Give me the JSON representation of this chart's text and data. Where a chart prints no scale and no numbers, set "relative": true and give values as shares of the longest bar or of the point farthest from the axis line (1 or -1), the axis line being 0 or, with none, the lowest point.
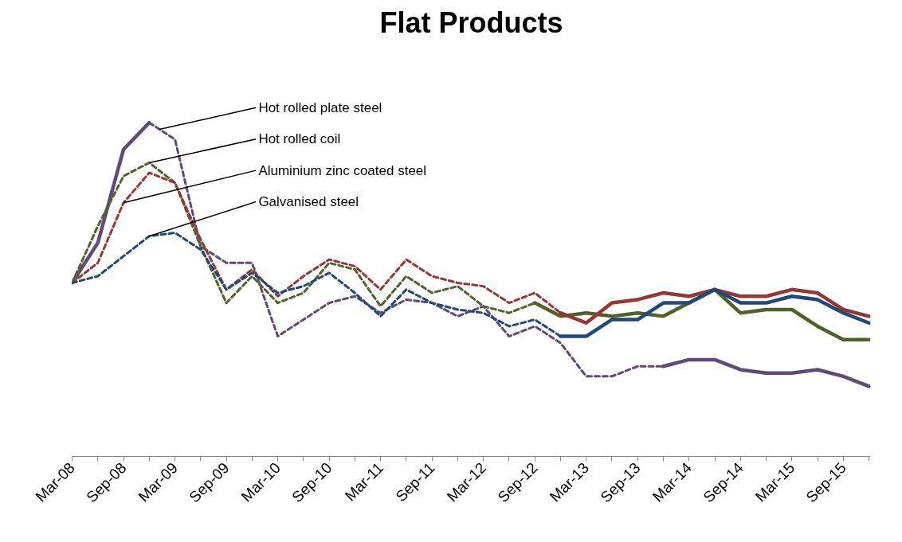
{
  "chart_data": {
    "type": "line",
    "title": "Flat Products",
    "relative": true,
    "grid": false,
    "marker": "none",
    "categories": [
      "Mar-08",
      null,
      "Sep-08",
      null,
      "Mar-09",
      null,
      "Sep-09",
      null,
      "Mar-10",
      null,
      "Sep-10",
      null,
      "Mar-11",
      null,
      "Sep-11",
      null,
      "Mar-12",
      null,
      "Sep-12",
      null,
      "Mar-13",
      null,
      "Sep-13",
      null,
      "Mar-14",
      null,
      "Sep-14",
      null,
      "Mar-15",
      null,
      "Sep-15",
      null
    ],
    "series": [
      {
        "name": "Hot rolled plate steel",
        "color": "#604a7b",
        "line_style": "dashed",
        "values": [
          null,
          null,
          null,
          1.0,
          0.95,
          0.63,
          0.58,
          0.58,
          0.36,
          0.41,
          0.46,
          0.48,
          0.43,
          0.47,
          0.46,
          0.42,
          0.45,
          0.36,
          0.39,
          0.34,
          0.24,
          0.24,
          0.27,
          0.27,
          null,
          null,
          null,
          null,
          null,
          null,
          null,
          null
        ]
      },
      {
        "color": "#604a7b",
        "line_style": "solid",
        "values": [
          0.52,
          0.64,
          0.92,
          1.0,
          null,
          null,
          null,
          null,
          null,
          null,
          null,
          null,
          null,
          null,
          null,
          null,
          null,
          null,
          null,
          null,
          null,
          null,
          null,
          0.27,
          0.29,
          0.29,
          0.26,
          0.25,
          0.25,
          0.26,
          0.24,
          0.21
        ]
      },
      {
        "name": "Hot rolled coil",
        "color": "#4f6228",
        "line_style": "dashed",
        "values": [
          0.52,
          0.69,
          0.84,
          0.88,
          0.82,
          0.63,
          0.46,
          0.54,
          0.46,
          0.49,
          0.58,
          0.56,
          0.45,
          0.54,
          0.49,
          0.51,
          0.45,
          0.43,
          0.46,
          null,
          null,
          null,
          null,
          null,
          null,
          null,
          null,
          null,
          null,
          null,
          null,
          null
        ]
      },
      {
        "color": "#4f6228",
        "line_style": "solid",
        "values": [
          null,
          null,
          null,
          null,
          null,
          null,
          null,
          null,
          null,
          null,
          null,
          null,
          null,
          null,
          null,
          null,
          null,
          null,
          0.46,
          0.42,
          0.43,
          0.42,
          0.43,
          0.42,
          0.46,
          0.5,
          0.43,
          0.44,
          0.44,
          0.39,
          0.35,
          0.35
        ]
      },
      {
        "name": "Aluminium zinc coated steel",
        "color": "#953735",
        "line_style": "dashed",
        "values": [
          0.52,
          0.58,
          0.76,
          0.85,
          0.82,
          0.65,
          0.5,
          0.56,
          0.48,
          0.54,
          0.59,
          0.57,
          0.5,
          0.59,
          0.54,
          0.52,
          0.51,
          0.46,
          0.49,
          0.43,
          null,
          null,
          null,
          null,
          null,
          null,
          null,
          null,
          null,
          null,
          null,
          null
        ]
      },
      {
        "color": "#953735",
        "line_style": "solid",
        "values": [
          null,
          null,
          null,
          null,
          null,
          null,
          null,
          null,
          null,
          null,
          null,
          null,
          null,
          null,
          null,
          null,
          null,
          null,
          null,
          0.43,
          0.4,
          0.46,
          0.47,
          0.49,
          0.48,
          0.5,
          0.48,
          0.48,
          0.5,
          0.49,
          0.44,
          0.42
        ]
      },
      {
        "name": "Galvanised steel",
        "color": "#1f497d",
        "line_style": "dashed",
        "values": [
          0.52,
          0.54,
          0.6,
          0.66,
          0.67,
          0.62,
          0.5,
          0.55,
          0.49,
          0.51,
          0.55,
          0.49,
          0.42,
          0.5,
          0.46,
          0.44,
          0.43,
          0.39,
          0.41,
          0.36,
          null,
          null,
          null,
          null,
          null,
          null,
          null,
          null,
          null,
          null,
          null,
          null
        ]
      },
      {
        "color": "#1f497d",
        "line_style": "solid",
        "values": [
          null,
          null,
          null,
          null,
          null,
          null,
          null,
          null,
          null,
          null,
          null,
          null,
          null,
          null,
          null,
          null,
          null,
          null,
          null,
          0.36,
          0.36,
          0.41,
          0.41,
          0.46,
          0.46,
          0.5,
          0.46,
          0.46,
          0.48,
          0.47,
          0.43,
          0.4
        ]
      }
    ]
  }
}
